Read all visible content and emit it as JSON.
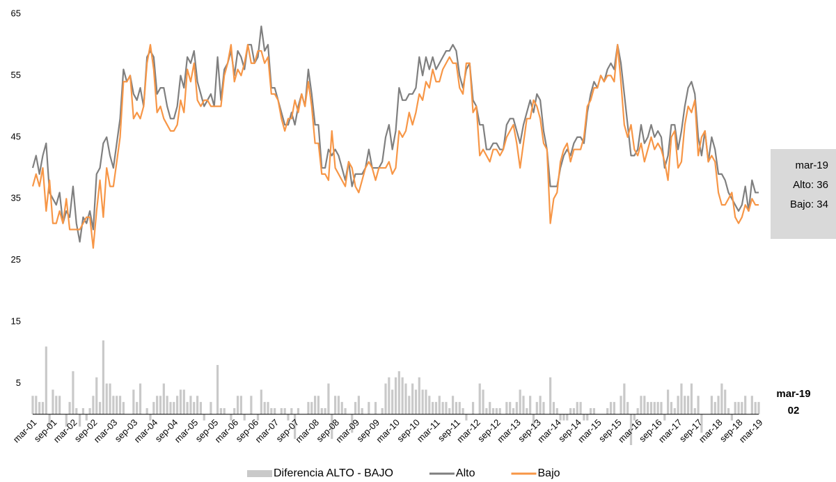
{
  "chart_data": {
    "type": "line",
    "categories": [
      "mar-01",
      null,
      null,
      null,
      null,
      null,
      "sep-01",
      null,
      null,
      null,
      null,
      null,
      "mar-02",
      null,
      null,
      null,
      null,
      null,
      "sep-02",
      null,
      null,
      null,
      null,
      null,
      "mar-03",
      null,
      null,
      null,
      null,
      null,
      "sep-03",
      null,
      null,
      null,
      null,
      null,
      "mar-04",
      null,
      null,
      null,
      null,
      null,
      "sep-04",
      null,
      null,
      null,
      null,
      null,
      "mar-05",
      null,
      null,
      null,
      null,
      null,
      "sep-05",
      null,
      null,
      null,
      null,
      null,
      "mar-06",
      null,
      null,
      null,
      null,
      null,
      "sep-06",
      null,
      null,
      null,
      null,
      null,
      "mar-07",
      null,
      null,
      null,
      null,
      null,
      "sep-07",
      null,
      null,
      null,
      null,
      null,
      "mar-08",
      null,
      null,
      null,
      null,
      null,
      "sep-08",
      null,
      null,
      null,
      null,
      null,
      "mar-09",
      null,
      null,
      null,
      null,
      null,
      "sep-09",
      null,
      null,
      null,
      null,
      null,
      "mar-10",
      null,
      null,
      null,
      null,
      null,
      "sep-10",
      null,
      null,
      null,
      null,
      null,
      "mar-11",
      null,
      null,
      null,
      null,
      null,
      "sep-11",
      null,
      null,
      null,
      null,
      null,
      "mar-12",
      null,
      null,
      null,
      null,
      null,
      "sep-12",
      null,
      null,
      null,
      null,
      null,
      "mar-13",
      null,
      null,
      null,
      null,
      null,
      "sep-13",
      null,
      null,
      null,
      null,
      null,
      "mar-14",
      null,
      null,
      null,
      null,
      null,
      "sep-14",
      null,
      null,
      null,
      null,
      null,
      "mar-15",
      null,
      null,
      null,
      null,
      null,
      "sep-15",
      null,
      null,
      null,
      null,
      null,
      "mar-16",
      null,
      null,
      null,
      null,
      null,
      "sep-16",
      null,
      null,
      null,
      null,
      null,
      "mar-17",
      null,
      null,
      null,
      null,
      null,
      "sep-17",
      null,
      null,
      null,
      null,
      null,
      "mar-18",
      null,
      null,
      null,
      null,
      null,
      "sep-18",
      null,
      null,
      null,
      null,
      null,
      "mar-19"
    ],
    "series": [
      {
        "name": "Diferencia ALTO - BAJO",
        "color": "#c9c9c9",
        "kind": "bar",
        "values": [
          3,
          3,
          2,
          2,
          11,
          -2,
          4,
          3,
          3,
          0,
          -2,
          2,
          7,
          1,
          -2,
          1,
          -1,
          1,
          3,
          6,
          2,
          12,
          5,
          5,
          3,
          3,
          3,
          2,
          0,
          0,
          4,
          2,
          5,
          0,
          1,
          -1,
          2,
          3,
          3,
          5,
          3,
          2,
          2,
          3,
          4,
          4,
          2,
          3,
          2,
          3,
          2,
          -1,
          0,
          2,
          0,
          8,
          1,
          1,
          0,
          -1,
          1,
          3,
          3,
          -1,
          0,
          3,
          0,
          -1,
          4,
          2,
          2,
          1,
          1,
          0,
          1,
          1,
          -1,
          1,
          -4,
          1,
          0,
          0,
          2,
          2,
          3,
          3,
          1,
          1,
          5,
          -4,
          3,
          3,
          2,
          1,
          0,
          -3,
          2,
          3,
          1,
          0,
          2,
          0,
          2,
          0,
          1,
          5,
          6,
          4,
          6,
          7,
          6,
          5,
          3,
          5,
          4,
          6,
          4,
          4,
          3,
          2,
          2,
          3,
          2,
          2,
          1,
          3,
          2,
          2,
          1,
          -1,
          0,
          2,
          0,
          5,
          4,
          1,
          2,
          1,
          1,
          1,
          0,
          2,
          2,
          1,
          2,
          4,
          3,
          1,
          3,
          -2,
          2,
          3,
          2,
          0,
          6,
          2,
          1,
          -1,
          -1,
          -1,
          1,
          1,
          2,
          2,
          -1,
          -1,
          1,
          1,
          0,
          0,
          0,
          1,
          2,
          2,
          0,
          3,
          5,
          2,
          -5,
          -1,
          1,
          3,
          3,
          2,
          2,
          2,
          2,
          2,
          -1,
          4,
          2,
          1,
          3,
          5,
          3,
          3,
          5,
          1,
          3,
          -3,
          0,
          0,
          3,
          2,
          3,
          5,
          4,
          1,
          -1,
          2,
          2,
          2,
          3,
          0,
          3,
          2,
          2
        ]
      },
      {
        "name": "Alto",
        "color": "#7f7f7f",
        "kind": "line",
        "values": [
          40,
          42,
          39,
          42,
          44,
          36,
          35,
          34,
          36,
          31,
          33,
          32,
          37,
          31,
          28,
          32,
          31,
          33,
          30,
          39,
          40,
          44,
          45,
          42,
          40,
          44,
          48,
          56,
          54,
          55,
          52,
          51,
          53,
          50,
          58,
          59,
          58,
          52,
          53,
          53,
          50,
          48,
          48,
          50,
          55,
          53,
          58,
          57,
          59,
          54,
          52,
          50,
          51,
          52,
          50,
          58,
          51,
          56,
          57,
          59,
          55,
          59,
          58,
          56,
          60,
          60,
          57,
          58,
          63,
          59,
          60,
          53,
          53,
          51,
          49,
          47,
          47,
          49,
          47,
          50,
          52,
          50,
          56,
          52,
          47,
          47,
          40,
          40,
          43,
          42,
          43,
          42,
          40,
          38,
          41,
          37,
          39,
          39,
          39,
          40,
          43,
          40,
          40,
          40,
          41,
          45,
          47,
          43,
          46,
          53,
          51,
          51,
          52,
          52,
          53,
          58,
          55,
          58,
          56,
          58,
          56,
          57,
          58,
          59,
          59,
          60,
          59,
          55,
          53,
          56,
          57,
          51,
          50,
          47,
          47,
          43,
          43,
          44,
          44,
          43,
          43,
          47,
          48,
          48,
          46,
          44,
          47,
          49,
          51,
          49,
          52,
          51,
          46,
          43,
          37,
          37,
          37,
          40,
          42,
          43,
          42,
          44,
          45,
          45,
          44,
          49,
          52,
          54,
          53,
          55,
          54,
          56,
          57,
          56,
          60,
          57,
          52,
          47,
          42,
          42,
          43,
          47,
          44,
          45,
          47,
          45,
          46,
          45,
          40,
          42,
          47,
          47,
          43,
          46,
          50,
          53,
          54,
          52,
          45,
          42,
          46,
          41,
          45,
          43,
          39,
          39,
          38,
          36,
          35,
          34,
          33,
          34,
          37,
          33,
          38,
          36,
          36
        ]
      },
      {
        "name": "Bajo",
        "color": "#f79646",
        "kind": "line",
        "values": [
          37,
          39,
          37,
          40,
          33,
          38,
          31,
          31,
          33,
          31,
          35,
          30,
          30,
          30,
          30,
          31,
          32,
          32,
          27,
          33,
          38,
          32,
          40,
          37,
          37,
          41,
          45,
          54,
          54,
          55,
          48,
          49,
          48,
          50,
          57,
          60,
          56,
          49,
          50,
          48,
          47,
          46,
          46,
          47,
          51,
          49,
          56,
          54,
          57,
          51,
          50,
          51,
          51,
          50,
          50,
          50,
          50,
          55,
          57,
          60,
          54,
          56,
          55,
          57,
          60,
          57,
          57,
          59,
          59,
          57,
          58,
          52,
          52,
          51,
          48,
          46,
          48,
          48,
          51,
          49,
          52,
          50,
          54,
          50,
          44,
          44,
          39,
          39,
          38,
          46,
          40,
          39,
          38,
          37,
          41,
          40,
          37,
          36,
          38,
          40,
          41,
          40,
          38,
          40,
          40,
          40,
          41,
          39,
          40,
          46,
          45,
          46,
          49,
          47,
          49,
          52,
          51,
          54,
          53,
          56,
          54,
          54,
          56,
          57,
          58,
          57,
          57,
          53,
          52,
          57,
          57,
          49,
          50,
          42,
          43,
          42,
          41,
          43,
          43,
          42,
          43,
          45,
          46,
          47,
          44,
          40,
          44,
          48,
          48,
          51,
          50,
          48,
          44,
          43,
          31,
          35,
          36,
          41,
          43,
          44,
          41,
          43,
          43,
          43,
          45,
          50,
          51,
          53,
          53,
          55,
          54,
          55,
          55,
          54,
          60,
          54,
          47,
          45,
          47,
          43,
          42,
          44,
          41,
          43,
          45,
          43,
          44,
          43,
          41,
          38,
          45,
          46,
          40,
          41,
          47,
          50,
          49,
          51,
          42,
          45,
          46,
          41,
          42,
          41,
          36,
          34,
          34,
          35,
          36,
          32,
          31,
          32,
          34,
          33,
          35,
          34,
          34
        ]
      }
    ],
    "ylim": [
      -5,
      65
    ],
    "yticks": [
      5,
      15,
      25,
      35,
      45,
      55,
      65
    ],
    "legend": "bottom",
    "annotations": {
      "tooltip": [
        "mar-19",
        "Alto: 36",
        "Bajo: 34"
      ],
      "last_diff": [
        "mar-19",
        "02"
      ]
    }
  }
}
